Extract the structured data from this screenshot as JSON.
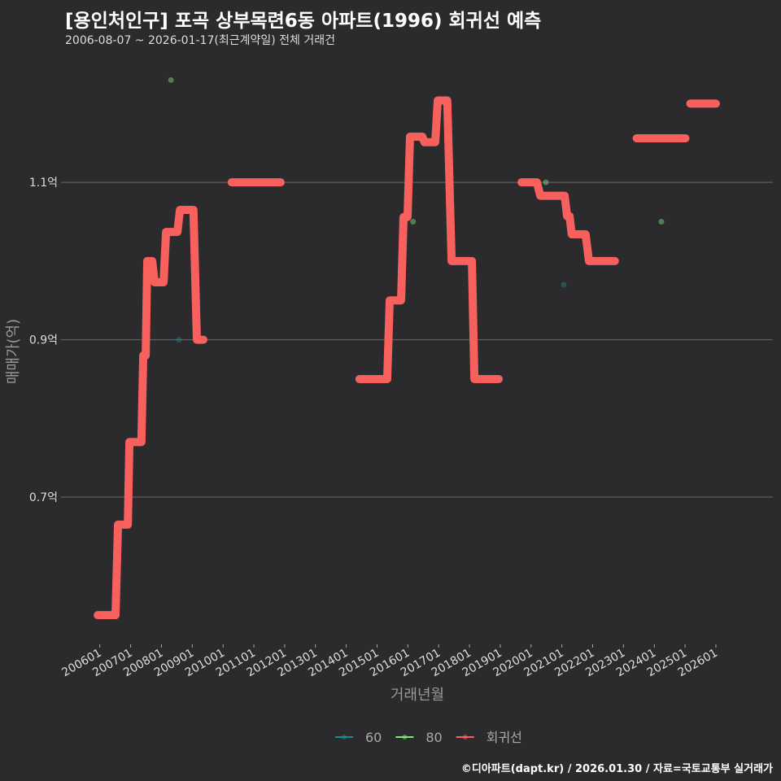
{
  "chart_data": {
    "type": "line",
    "title": "[용인처인구] 포곡 상부목련6동 아파트(1996) 회귀선 예측",
    "subtitle": "2006-08-07 ~ 2026-01-17(최근계약일) 전체 거래건",
    "xlabel": "거래년월",
    "ylabel": "매매가(억)",
    "xlim": [
      2004.74,
      2027.85
    ],
    "ylim": [
      0.515,
      1.249
    ],
    "grid": true,
    "y_ticks": [
      {
        "value": 0.7,
        "label": "0.7억"
      },
      {
        "value": 0.9,
        "label": "0.9억"
      },
      {
        "value": 1.1,
        "label": "1.1억"
      }
    ],
    "x_ticks": [
      "200601",
      "200701",
      "200801",
      "200901",
      "201001",
      "201101",
      "201201",
      "201301",
      "201401",
      "201501",
      "201601",
      "201701",
      "201801",
      "201901",
      "202001",
      "202101",
      "202201",
      "202301",
      "202401",
      "202501",
      "202601"
    ],
    "x_tick_start_year": 2006,
    "legend": {
      "placement": "bottom",
      "entries": [
        {
          "name": "60",
          "color": "#1f8a8a"
        },
        {
          "name": "80",
          "color": "#7de87a"
        },
        {
          "name": "회귀선",
          "color": "#f8605e"
        }
      ]
    },
    "series": [
      {
        "name": "60",
        "type": "scatter",
        "color": "#1f8a8a",
        "points": [
          [
            2008.57,
            0.9
          ],
          [
            2021.06,
            0.97
          ]
        ]
      },
      {
        "name": "80",
        "type": "scatter",
        "color": "#7de87a",
        "points": [
          [
            2008.31,
            1.23
          ],
          [
            2016.17,
            1.05
          ],
          [
            2020.48,
            1.1
          ],
          [
            2024.23,
            1.05
          ]
        ]
      },
      {
        "name": "회귀선",
        "type": "line",
        "color": "#f8605e",
        "segments": [
          [
            [
              2005.93,
              0.55
            ],
            [
              2006.51,
              0.55
            ],
            [
              2006.59,
              0.665
            ],
            [
              2006.91,
              0.665
            ],
            [
              2006.96,
              0.77
            ],
            [
              2007.35,
              0.77
            ],
            [
              2007.41,
              0.88
            ],
            [
              2007.49,
              0.88
            ],
            [
              2007.54,
              1.0
            ],
            [
              2007.7,
              1.0
            ],
            [
              2007.78,
              0.973
            ],
            [
              2008.07,
              0.973
            ],
            [
              2008.15,
              1.037
            ],
            [
              2008.52,
              1.037
            ],
            [
              2008.6,
              1.065
            ],
            [
              2009.04,
              1.065
            ],
            [
              2009.15,
              0.9
            ],
            [
              2009.36,
              0.9
            ]
          ],
          [
            [
              2010.28,
              1.1
            ],
            [
              2011.87,
              1.1
            ]
          ],
          [
            [
              2014.43,
              0.85
            ],
            [
              2015.33,
              0.85
            ],
            [
              2015.41,
              0.95
            ],
            [
              2015.78,
              0.95
            ],
            [
              2015.86,
              1.056
            ],
            [
              2015.99,
              1.056
            ],
            [
              2016.07,
              1.158
            ],
            [
              2016.47,
              1.158
            ],
            [
              2016.54,
              1.151
            ],
            [
              2016.89,
              1.151
            ],
            [
              2016.97,
              1.204
            ],
            [
              2017.28,
              1.204
            ],
            [
              2017.42,
              1.0
            ],
            [
              2018.08,
              1.0
            ],
            [
              2018.16,
              0.85
            ],
            [
              2018.95,
              0.85
            ]
          ],
          [
            [
              2019.69,
              1.1
            ],
            [
              2020.19,
              1.1
            ],
            [
              2020.3,
              1.083
            ],
            [
              2021.09,
              1.083
            ],
            [
              2021.17,
              1.057
            ],
            [
              2021.25,
              1.057
            ],
            [
              2021.32,
              1.034
            ],
            [
              2021.77,
              1.034
            ],
            [
              2021.88,
              1.0
            ],
            [
              2022.72,
              1.0
            ]
          ],
          [
            [
              2023.43,
              1.156
            ],
            [
              2025.01,
              1.156
            ]
          ],
          [
            [
              2025.17,
              1.2
            ],
            [
              2026.0,
              1.2
            ]
          ]
        ]
      }
    ]
  },
  "credit": "©디아파트(dapt.kr) / 2026.01.30 / 자료=국토교통부 실거래가"
}
